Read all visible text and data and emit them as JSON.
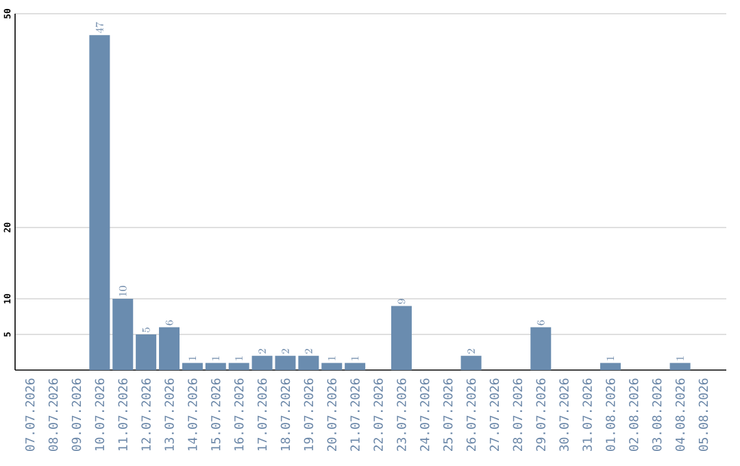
{
  "chart_data": {
    "type": "bar",
    "categories": [
      "07.07.2026",
      "08.07.2026",
      "09.07.2026",
      "10.07.2026",
      "11.07.2026",
      "12.07.2026",
      "13.07.2026",
      "14.07.2026",
      "15.07.2026",
      "16.07.2026",
      "17.07.2026",
      "18.07.2026",
      "19.07.2026",
      "20.07.2026",
      "21.07.2026",
      "22.07.2026",
      "23.07.2026",
      "24.07.2026",
      "25.07.2026",
      "26.07.2026",
      "27.07.2026",
      "28.07.2026",
      "29.07.2026",
      "30.07.2026",
      "31.07.2026",
      "01.08.2026",
      "02.08.2026",
      "03.08.2026",
      "04.08.2026",
      "05.08.2026"
    ],
    "values": [
      null,
      null,
      null,
      47,
      10,
      5,
      6,
      1,
      1,
      1,
      2,
      2,
      2,
      1,
      1,
      null,
      9,
      null,
      null,
      2,
      null,
      null,
      6,
      null,
      null,
      1,
      null,
      null,
      1,
      null
    ],
    "color": "#6a8caf",
    "ylim": [
      0,
      50
    ],
    "yticks": [
      5,
      10,
      20,
      50
    ],
    "grid": "y",
    "data_labels": true
  }
}
